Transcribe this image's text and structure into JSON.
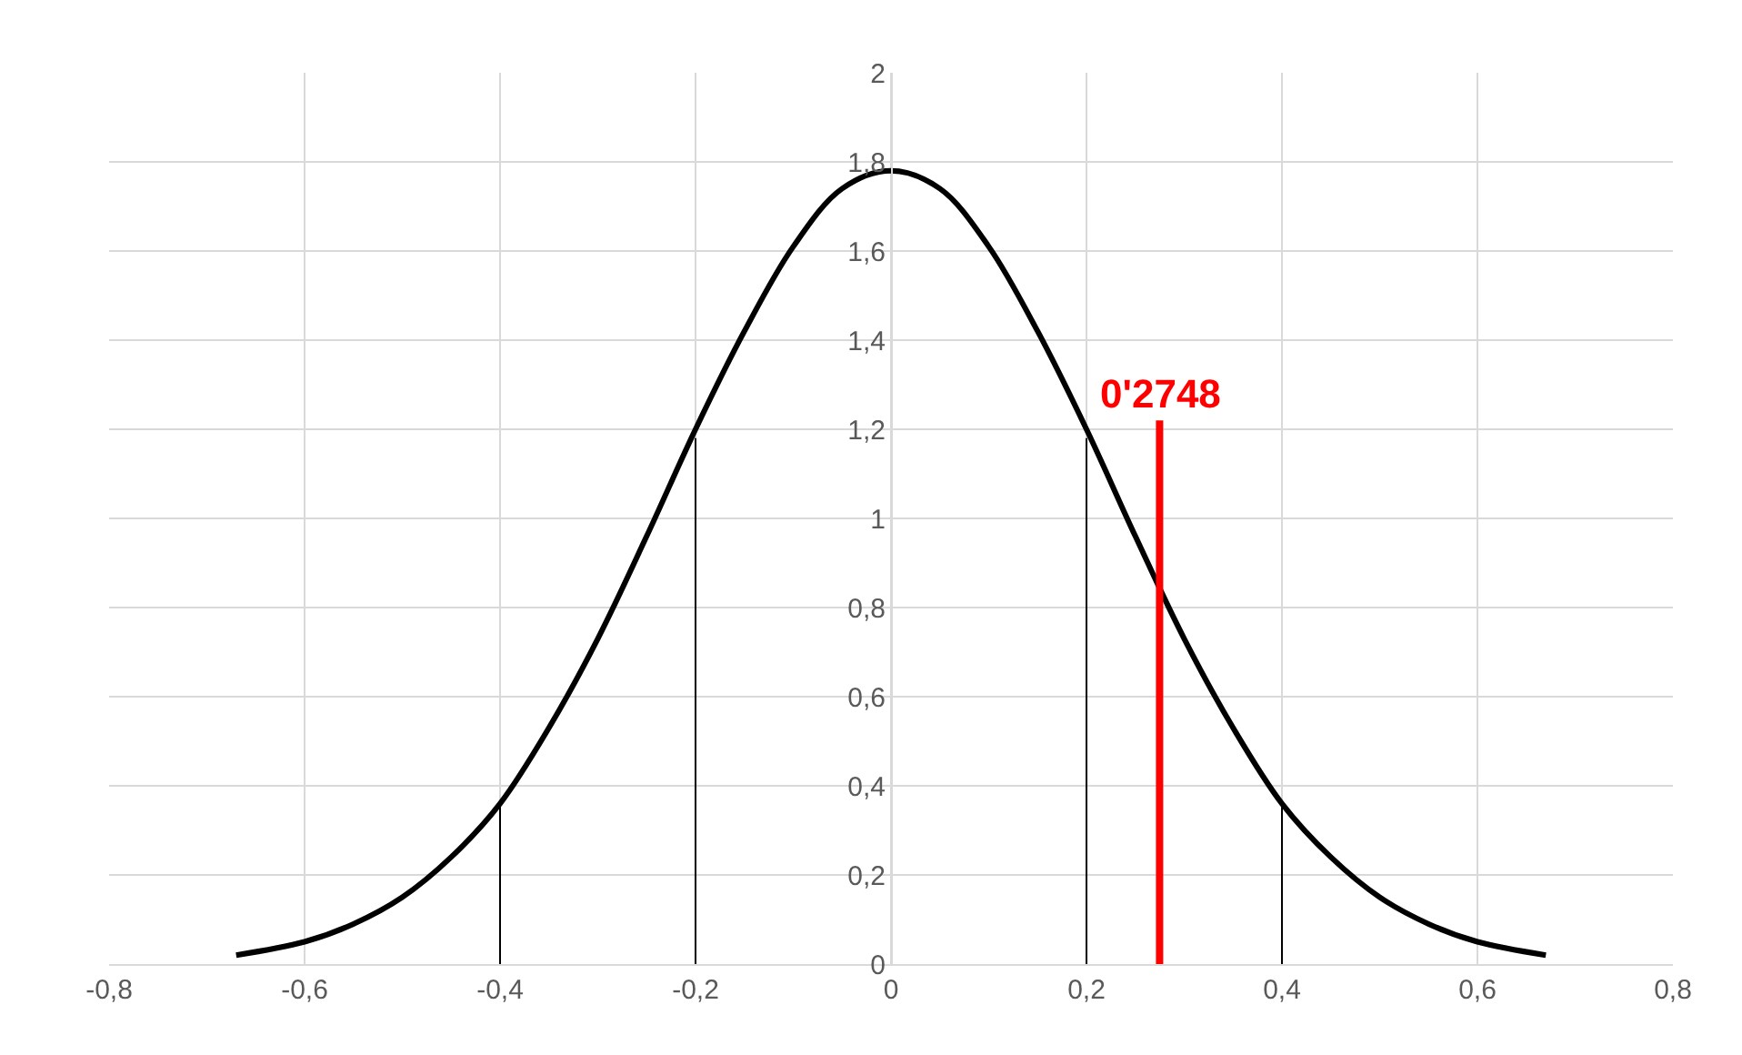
{
  "chart_data": {
    "type": "line",
    "xlim": [
      -0.8,
      0.8
    ],
    "ylim": [
      0,
      2
    ],
    "xticks": [
      {
        "value": -0.8,
        "label": "-0,8"
      },
      {
        "value": -0.6,
        "label": "-0,6"
      },
      {
        "value": -0.4,
        "label": "-0,4"
      },
      {
        "value": -0.2,
        "label": "-0,2"
      },
      0,
      {
        "value": 0.2,
        "label": "0,2"
      },
      {
        "value": 0.4,
        "label": "0,4"
      },
      {
        "value": 0.6,
        "label": "0,6"
      },
      {
        "value": 0.8,
        "label": "0,8"
      }
    ],
    "yticks": [
      0,
      {
        "value": 0.2,
        "label": "0,2"
      },
      {
        "value": 0.4,
        "label": "0,4"
      },
      {
        "value": 0.6,
        "label": "0,6"
      },
      {
        "value": 0.8,
        "label": "0,8"
      },
      1,
      {
        "value": 1.2,
        "label": "1,2"
      },
      {
        "value": 1.4,
        "label": "1,4"
      },
      {
        "value": 1.6,
        "label": "1,6"
      },
      {
        "value": 1.8,
        "label": "1,8"
      },
      2
    ],
    "grid": true,
    "marker": "none",
    "line_style": "solid",
    "series": [
      {
        "color": "#000000",
        "x": [
          -0.67,
          -0.6,
          -0.55,
          -0.5,
          -0.45,
          -0.4,
          -0.35,
          -0.3,
          -0.25,
          -0.2,
          -0.15,
          -0.1,
          -0.05,
          0,
          0.05,
          0.1,
          0.15,
          0.2,
          0.25,
          0.3,
          0.35,
          0.4,
          0.45,
          0.5,
          0.55,
          0.6,
          0.67
        ],
        "values": [
          0.02,
          0.05,
          0.09,
          0.15,
          0.24,
          0.36,
          0.53,
          0.73,
          0.96,
          1.2,
          1.42,
          1.61,
          1.74,
          1.78,
          1.74,
          1.61,
          1.42,
          1.2,
          0.96,
          0.73,
          0.53,
          0.36,
          0.24,
          0.15,
          0.09,
          0.05,
          0.02
        ]
      },
      {
        "color": "#000000",
        "x": [
          -0.4,
          -0.4
        ],
        "values": [
          0,
          0.36
        ]
      },
      {
        "color": "#000000",
        "x": [
          -0.2,
          -0.2
        ],
        "values": [
          0,
          1.18
        ]
      },
      {
        "color": "#000000",
        "x": [
          0.2,
          0.2
        ],
        "values": [
          0,
          1.18
        ]
      },
      {
        "color": "#000000",
        "x": [
          0.4,
          0.4
        ],
        "values": [
          0,
          0.36
        ]
      },
      {
        "color": "#ff0000",
        "x": [
          0.2748,
          0.2748
        ],
        "values": [
          0,
          1.22
        ]
      }
    ],
    "annotations": [
      {
        "text": "0'2748",
        "x": 0.2748,
        "y": 1.22
      }
    ]
  }
}
